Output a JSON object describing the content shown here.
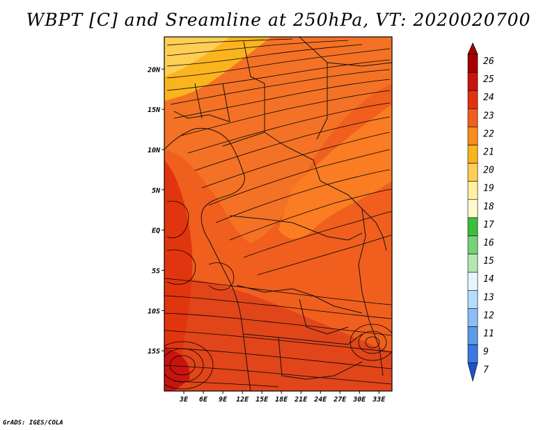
{
  "title": "WBPT [C] and Sreamline at 250hPa, VT: 2020020700",
  "credit": "GrADS: IGES/COLA",
  "map": {
    "field": "Wet-bulb potential temperature (WBPT)",
    "level": "250hPa",
    "region": "Africa",
    "lon_range": [
      0,
      35
    ],
    "lat_range": [
      -20,
      24
    ],
    "lon_ticks": [
      "3E",
      "6E",
      "9E",
      "12E",
      "15E",
      "18E",
      "21E",
      "24E",
      "27E",
      "30E",
      "33E"
    ],
    "lon_tick_values": [
      3,
      6,
      9,
      12,
      15,
      18,
      21,
      24,
      27,
      30,
      33
    ],
    "lat_ticks": [
      "20N",
      "15N",
      "10N",
      "5N",
      "EQ",
      "5S",
      "10S",
      "15S"
    ],
    "lat_tick_values": [
      20,
      15,
      10,
      5,
      0,
      -5,
      -10,
      -15
    ]
  },
  "colorbar": {
    "labels": [
      "26",
      "25",
      "24",
      "23",
      "22",
      "21",
      "20",
      "19",
      "18",
      "17",
      "16",
      "15",
      "14",
      "13",
      "12",
      "11",
      "9",
      "7"
    ],
    "colors": [
      "#a50000",
      "#c8140f",
      "#e1320f",
      "#f05f1e",
      "#fa8c1e",
      "#fab41e",
      "#ffcf55",
      "#fff0a0",
      "#fffacd",
      "#3cbe3c",
      "#78d278",
      "#b4e6b4",
      "#e6f5ff",
      "#b4dcff",
      "#8cbef5",
      "#5a9be6",
      "#3c78e1",
      "#1e50c8"
    ]
  }
}
